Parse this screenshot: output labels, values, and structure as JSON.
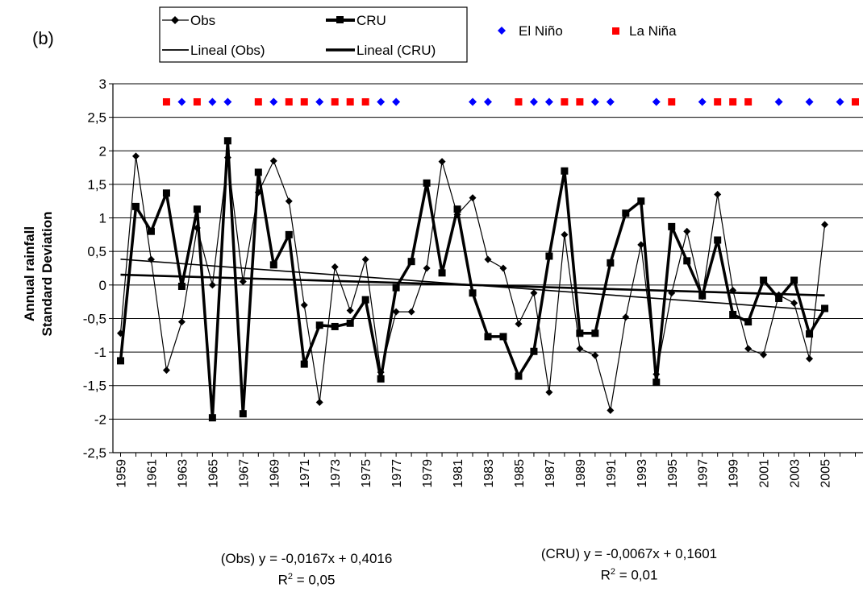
{
  "panel_label": "(b)",
  "chart_data": {
    "type": "line",
    "ylabel_line1": "Annual rainfall",
    "ylabel_line2": "Standard Deviation",
    "ylim": [
      -2.5,
      3
    ],
    "yticks": [
      -2.5,
      -2,
      -1.5,
      -1,
      -0.5,
      0,
      0.5,
      1,
      1.5,
      2,
      2.5,
      3
    ],
    "ytick_labels": [
      "-2,5",
      "-2",
      "-1,5",
      "-1",
      "-0,5",
      "0",
      "0,5",
      "1",
      "1,5",
      "2",
      "2,5",
      "3"
    ],
    "xlim": [
      1958.5,
      2007.5
    ],
    "xticks": [
      1959,
      1961,
      1963,
      1965,
      1967,
      1969,
      1971,
      1973,
      1975,
      1977,
      1979,
      1981,
      1983,
      1985,
      1987,
      1989,
      1991,
      1993,
      1995,
      1997,
      1999,
      2001,
      2003,
      2005
    ],
    "grid": "horizontal",
    "legend_position": "top",
    "series": [
      {
        "name": "Obs",
        "style": "thin-diamond",
        "x": [
          1959,
          1960,
          1961,
          1962,
          1963,
          1964,
          1965,
          1966,
          1967,
          1968,
          1969,
          1970,
          1971,
          1972,
          1973,
          1974,
          1975,
          1976,
          1977,
          1978,
          1979,
          1980,
          1981,
          1982,
          1983,
          1984,
          1985,
          1986,
          1987,
          1988,
          1989,
          1990,
          1991,
          1992,
          1993,
          1994,
          1995,
          1996,
          1997,
          1998,
          1999,
          2000,
          2001,
          2002,
          2003,
          2004,
          2005
        ],
        "values": [
          -0.72,
          1.92,
          0.38,
          -1.27,
          -0.55,
          0.85,
          0.0,
          1.9,
          0.05,
          1.38,
          1.85,
          1.25,
          -0.3,
          -1.75,
          0.27,
          -0.38,
          0.38,
          -1.3,
          -0.4,
          -0.4,
          0.25,
          1.84,
          1.05,
          1.3,
          0.38,
          0.25,
          -0.58,
          -0.12,
          -1.6,
          0.75,
          -0.95,
          -1.05,
          -1.87,
          -0.48,
          0.6,
          -1.33,
          -0.12,
          0.8,
          -0.17,
          1.35,
          -0.08,
          -0.95,
          -1.04,
          -0.15,
          -0.27,
          -1.1,
          0.9
        ]
      },
      {
        "name": "CRU",
        "style": "thick-square",
        "x": [
          1959,
          1960,
          1961,
          1962,
          1963,
          1964,
          1965,
          1966,
          1967,
          1968,
          1969,
          1970,
          1971,
          1972,
          1973,
          1974,
          1975,
          1976,
          1977,
          1978,
          1979,
          1980,
          1981,
          1982,
          1983,
          1984,
          1985,
          1986,
          1987,
          1988,
          1989,
          1990,
          1991,
          1992,
          1993,
          1994,
          1995,
          1996,
          1997,
          1998,
          1999,
          2000,
          2001,
          2002,
          2003,
          2004,
          2005
        ],
        "values": [
          -1.13,
          1.17,
          0.8,
          1.37,
          -0.02,
          1.13,
          -1.98,
          2.15,
          -1.92,
          1.68,
          0.3,
          0.75,
          -1.18,
          -0.6,
          -0.62,
          -0.57,
          -0.22,
          -1.4,
          -0.04,
          0.35,
          1.52,
          0.18,
          1.13,
          -0.12,
          -0.77,
          -0.77,
          -1.36,
          -0.99,
          0.43,
          1.7,
          -0.72,
          -0.72,
          0.33,
          1.07,
          1.25,
          -1.45,
          0.87,
          0.36,
          -0.16,
          0.67,
          -0.44,
          -0.55,
          0.07,
          -0.2,
          0.07,
          -0.73,
          -0.35
        ]
      }
    ],
    "trendlines": [
      {
        "name": "Lineal (Obs)",
        "slope": -0.0167,
        "intercept": 0.4016,
        "weight": "thin"
      },
      {
        "name": "Lineal (CRU)",
        "slope": -0.0067,
        "intercept": 0.1601,
        "weight": "thick"
      }
    ],
    "enso_level": 2.73,
    "el_nino_years": [
      1963,
      1965,
      1966,
      1969,
      1972,
      1976,
      1977,
      1982,
      1983,
      1986,
      1987,
      1990,
      1991,
      1994,
      1997,
      2002,
      2004,
      2006
    ],
    "la_nina_years": [
      1962,
      1964,
      1968,
      1970,
      1971,
      1973,
      1974,
      1975,
      1985,
      1988,
      1989,
      1995,
      1998,
      1999,
      2000,
      2007
    ],
    "legend": {
      "obs": "Obs",
      "cru": "CRU",
      "el_nino": "El Niño",
      "la_nina": "La Niña",
      "lineal_obs": "Lineal (Obs)",
      "lineal_cru": "Lineal (CRU)"
    },
    "colors": {
      "el_nino": "#0000ff",
      "la_nina": "#ff0000",
      "series": "#000000"
    }
  },
  "equations": {
    "obs_equation": "(Obs) y = -0,0167x + 0,4016",
    "obs_r2_prefix": "R",
    "obs_r2_sup": "2",
    "obs_r2_value": " = 0,05",
    "cru_equation": "(CRU) y = -0,0067x + 0,1601",
    "cru_r2_prefix": "R",
    "cru_r2_sup": "2",
    "cru_r2_value": " = 0,01"
  }
}
